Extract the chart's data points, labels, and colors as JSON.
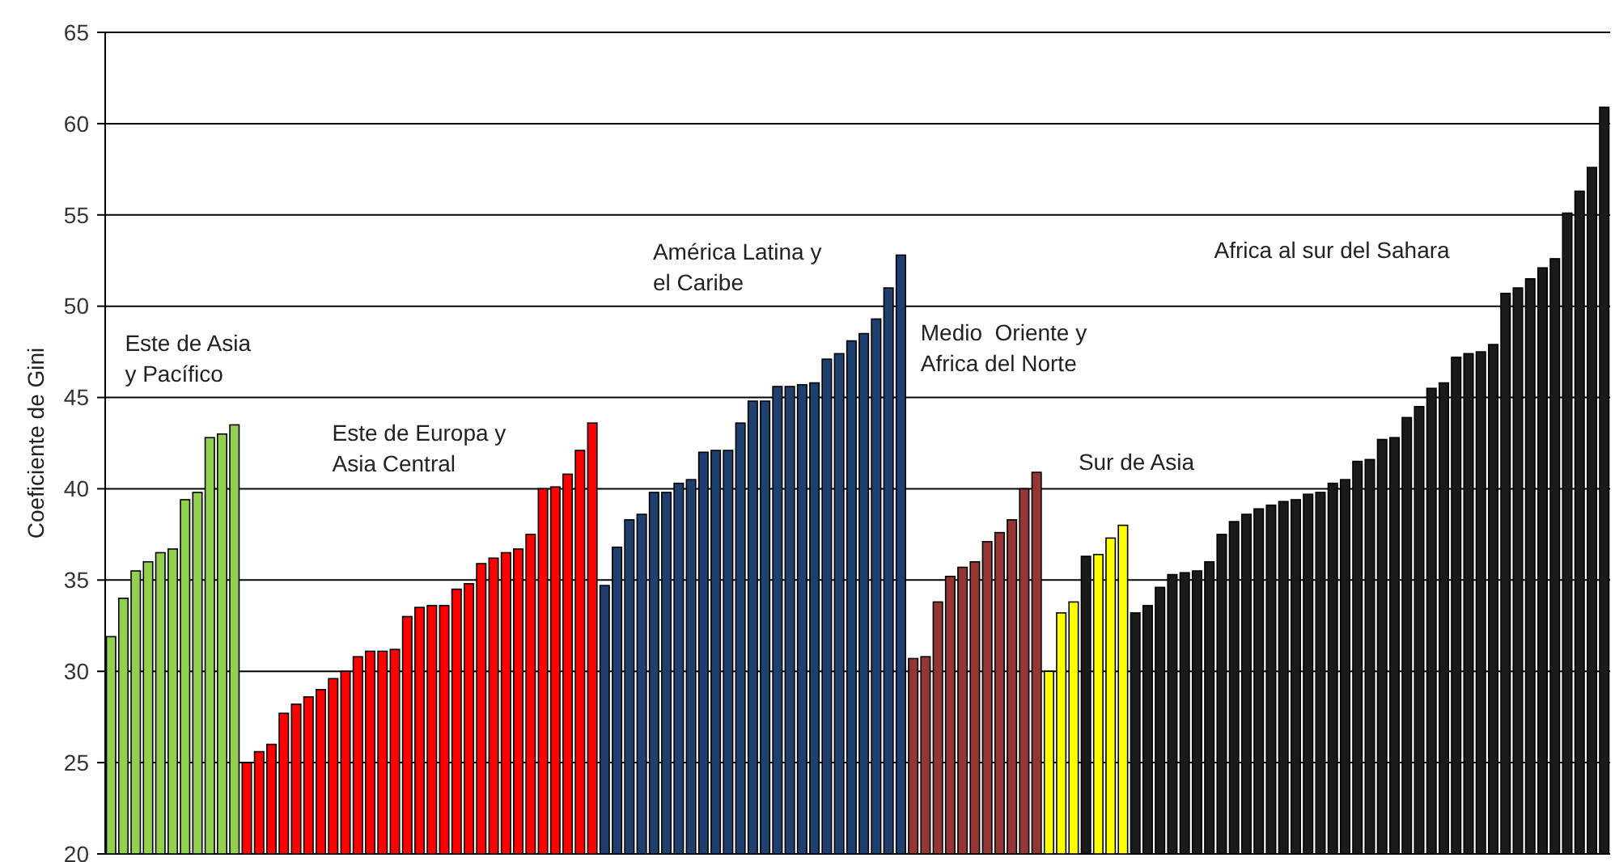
{
  "chart_data": {
    "type": "bar",
    "ylabel": "Coeficiente de Gini",
    "ylim": [
      20,
      65
    ],
    "yticks": [
      20,
      25,
      30,
      35,
      40,
      45,
      50,
      55,
      60,
      65
    ],
    "grid": "y",
    "tick_labels": "y",
    "categories": [
      null,
      null,
      null,
      null,
      null,
      null,
      null,
      null,
      null,
      null,
      null,
      null,
      null,
      null,
      null,
      null,
      null,
      null,
      null,
      null,
      null,
      null,
      null,
      null,
      null,
      null,
      null,
      null,
      null,
      null,
      null,
      null,
      null,
      null,
      null,
      null,
      null,
      null,
      null,
      null,
      null,
      null,
      null,
      null,
      null,
      null,
      null,
      null,
      null,
      null,
      null,
      null,
      null,
      null,
      null,
      null,
      null,
      null,
      null,
      null,
      null,
      null,
      null,
      null,
      null,
      null,
      null,
      null,
      null,
      null,
      null,
      null,
      null,
      null,
      null,
      null,
      null,
      null,
      null,
      null,
      null,
      null,
      null,
      null,
      null,
      null,
      null,
      null,
      null,
      null,
      null,
      null,
      null,
      null,
      null,
      null,
      null,
      null,
      null,
      null,
      null,
      null,
      null,
      null,
      null,
      null,
      null,
      null,
      null,
      null,
      null,
      null,
      null,
      null,
      null,
      null,
      null,
      null,
      null,
      null,
      null,
      null
    ],
    "values": [
      31.9,
      34.0,
      35.5,
      36.0,
      36.5,
      36.7,
      39.4,
      39.8,
      42.8,
      43.0,
      43.5,
      25.0,
      25.6,
      26.0,
      27.7,
      28.2,
      28.6,
      29.0,
      29.6,
      30.0,
      30.8,
      31.1,
      31.1,
      31.2,
      33.0,
      33.5,
      33.6,
      33.6,
      34.5,
      34.8,
      35.9,
      36.2,
      36.5,
      36.7,
      37.5,
      40.0,
      40.1,
      40.8,
      42.1,
      43.6,
      34.7,
      36.8,
      38.3,
      38.6,
      39.8,
      39.8,
      40.3,
      40.5,
      42.0,
      42.1,
      42.1,
      43.6,
      44.8,
      44.8,
      45.6,
      45.6,
      45.7,
      45.8,
      47.1,
      47.4,
      48.1,
      48.5,
      49.3,
      51.0,
      52.8,
      30.7,
      30.8,
      33.8,
      35.2,
      35.7,
      36.0,
      37.1,
      37.6,
      38.3,
      40.0,
      40.9,
      30.0,
      33.2,
      33.8,
      36.3,
      36.4,
      37.3,
      38.0,
      33.2,
      33.6,
      34.6,
      35.3,
      35.4,
      35.5,
      36.0,
      37.5,
      38.2,
      38.6,
      38.9,
      39.1,
      39.3,
      39.4,
      39.7,
      39.8,
      40.3,
      40.5,
      41.5,
      41.6,
      42.7,
      42.8,
      43.9,
      44.5,
      45.5,
      45.8,
      47.2,
      47.4,
      47.5,
      47.9,
      50.7,
      51.0,
      51.5,
      52.1,
      52.6,
      55.1,
      56.3,
      57.6,
      60.9
    ],
    "colors": [
      "#92d050",
      "#92d050",
      "#92d050",
      "#92d050",
      "#92d050",
      "#92d050",
      "#92d050",
      "#92d050",
      "#92d050",
      "#92d050",
      "#92d050",
      "#ff0000",
      "#ff0000",
      "#ff0000",
      "#ff0000",
      "#ff0000",
      "#ff0000",
      "#ff0000",
      "#ff0000",
      "#ff0000",
      "#ff0000",
      "#ff0000",
      "#ff0000",
      "#ff0000",
      "#ff0000",
      "#ff0000",
      "#ff0000",
      "#ff0000",
      "#ff0000",
      "#ff0000",
      "#ff0000",
      "#ff0000",
      "#ff0000",
      "#ff0000",
      "#ff0000",
      "#ff0000",
      "#ff0000",
      "#ff0000",
      "#ff0000",
      "#ff0000",
      "#1f3f6e",
      "#1f3f6e",
      "#1f3f6e",
      "#1f3f6e",
      "#1f3f6e",
      "#1f3f6e",
      "#1f3f6e",
      "#1f3f6e",
      "#1f3f6e",
      "#1f3f6e",
      "#1f3f6e",
      "#1f3f6e",
      "#1f3f6e",
      "#1f3f6e",
      "#1f3f6e",
      "#1f3f6e",
      "#1f3f6e",
      "#1f3f6e",
      "#1f3f6e",
      "#1f3f6e",
      "#1f3f6e",
      "#1f3f6e",
      "#1f3f6e",
      "#1f3f6e",
      "#1f3f6e",
      "#943634",
      "#943634",
      "#943634",
      "#943634",
      "#943634",
      "#943634",
      "#943634",
      "#943634",
      "#943634",
      "#943634",
      "#943634",
      "#ffff00",
      "#ffff00",
      "#ffff00",
      "#1a1a1a",
      "#ffff00",
      "#ffff00",
      "#ffff00",
      "#1a1a1a",
      "#1a1a1a",
      "#1a1a1a",
      "#1a1a1a",
      "#1a1a1a",
      "#1a1a1a",
      "#1a1a1a",
      "#1a1a1a",
      "#1a1a1a",
      "#1a1a1a",
      "#1a1a1a",
      "#1a1a1a",
      "#1a1a1a",
      "#1a1a1a",
      "#1a1a1a",
      "#1a1a1a",
      "#1a1a1a",
      "#1a1a1a",
      "#1a1a1a",
      "#1a1a1a",
      "#1a1a1a",
      "#1a1a1a",
      "#1a1a1a",
      "#1a1a1a",
      "#1a1a1a",
      "#1a1a1a",
      "#1a1a1a",
      "#1a1a1a",
      "#1a1a1a",
      "#1a1a1a",
      "#1a1a1a",
      "#1a1a1a",
      "#1a1a1a",
      "#1a1a1a",
      "#1a1a1a",
      "#1a1a1a",
      "#1a1a1a",
      "#1a1a1a",
      "#1a1a1a"
    ],
    "annotations": [
      "Este de Asia\ny Pacífico",
      "Este de Europa y\nAsia Central",
      "América Latina y\nel Caribe",
      "Medio  Oriente y\nAfrica del Norte",
      "Sur de Asia",
      "Africa al sur del Sahara"
    ]
  }
}
